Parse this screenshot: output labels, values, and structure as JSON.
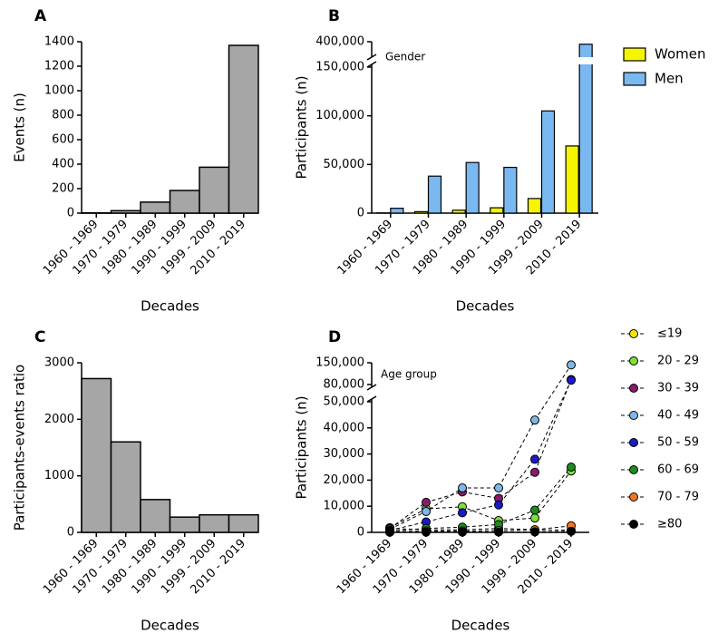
{
  "chart_data": [
    {
      "label": "A",
      "type": "bar",
      "ylabel": "Events (n)",
      "xlabel": "Decades",
      "categories": [
        "1960 - 1969",
        "1970 - 1979",
        "1980 - 1989",
        "1990 - 1999",
        "1999 - 2009",
        "2010 - 2019"
      ],
      "values": [
        2,
        20,
        90,
        185,
        375,
        1370
      ],
      "color": "#a6a6a6",
      "ylim": [
        0,
        1400
      ],
      "yticks": [
        0,
        200,
        400,
        600,
        800,
        1000,
        1200,
        1400
      ]
    },
    {
      "label": "B",
      "type": "bar",
      "ylabel": "Participants (n)",
      "xlabel": "Decades",
      "annotation": "Gender",
      "categories": [
        "1960 - 1969",
        "1970 - 1979",
        "1980 - 1989",
        "1990 - 1999",
        "1999 - 2009",
        "2010 - 2019"
      ],
      "series": [
        {
          "name": "Women",
          "color": "#f5f500",
          "values": [
            200,
            1500,
            3000,
            5500,
            15000,
            69000
          ]
        },
        {
          "name": "Men",
          "color": "#7ab8f0",
          "values": [
            5000,
            38000,
            52000,
            47000,
            105000,
            380000
          ]
        }
      ],
      "ylim": [
        0,
        400000
      ],
      "ybreak": [
        150000,
        300000
      ],
      "yticks": [
        0,
        {
          "value": 50000,
          "label": "50,000"
        },
        {
          "value": 100000,
          "label": "100,000"
        },
        {
          "value": 150000,
          "label": "150,000"
        },
        {
          "value": 400000,
          "label": "400,000"
        }
      ]
    },
    {
      "label": "C",
      "type": "bar",
      "ylabel": "Participants-events ratio",
      "xlabel": "Decades",
      "categories": [
        "1960 - 1969",
        "1970 - 1979",
        "1980 - 1989",
        "1990 - 1999",
        "1999 - 2009",
        "2010 - 2019"
      ],
      "values": [
        2720,
        1600,
        580,
        270,
        310,
        310
      ],
      "color": "#a6a6a6",
      "ylim": [
        0,
        3000
      ],
      "yticks": [
        0,
        1000,
        2000,
        3000
      ]
    },
    {
      "label": "D",
      "type": "line",
      "ylabel": "Participants (n)",
      "xlabel": "Decades",
      "annotation": "Age group",
      "categories": [
        "1960 - 1969",
        "1970 - 1979",
        "1980 - 1989",
        "1990 - 1999",
        "1999 - 2009",
        "2010 - 2019"
      ],
      "series": [
        {
          "name": "≤19",
          "color": "#f5e500",
          "values": [
            1500,
            1000,
            1000,
            1500,
            1000,
            800
          ]
        },
        {
          "name": "20 - 29",
          "color": "#7fe03a",
          "values": [
            1800,
            9000,
            9800,
            4500,
            5500,
            23500
          ]
        },
        {
          "name": "30 - 39",
          "color": "#8b1a6b",
          "values": [
            1500,
            11500,
            15500,
            13000,
            23000,
            96000
          ]
        },
        {
          "name": "40 - 49",
          "color": "#7fb8e8",
          "values": [
            1200,
            8000,
            17000,
            17000,
            43000,
            143000
          ]
        },
        {
          "name": "50 - 59",
          "color": "#1a1acc",
          "values": [
            800,
            4000,
            7500,
            10500,
            28000,
            94000
          ]
        },
        {
          "name": "60 - 69",
          "color": "#1e8c1e",
          "values": [
            500,
            1500,
            2000,
            3000,
            8500,
            25000
          ]
        },
        {
          "name": "70 - 79",
          "color": "#f07820",
          "values": [
            200,
            500,
            500,
            700,
            1000,
            2500
          ]
        },
        {
          "name": "≥80",
          "color": "#000000",
          "values": [
            50,
            100,
            100,
            150,
            200,
            400
          ]
        }
      ],
      "ylim": [
        0,
        150000
      ],
      "ybreak": [
        50000,
        80000
      ],
      "yticks": [
        0,
        {
          "value": 10000,
          "label": "10,000"
        },
        {
          "value": 20000,
          "label": "20,000"
        },
        {
          "value": 30000,
          "label": "30,000"
        },
        {
          "value": 40000,
          "label": "40,000"
        },
        {
          "value": 50000,
          "label": "50,000"
        },
        {
          "value": 80000,
          "label": "80,000"
        },
        {
          "value": 150000,
          "label": "150,000"
        }
      ]
    }
  ]
}
